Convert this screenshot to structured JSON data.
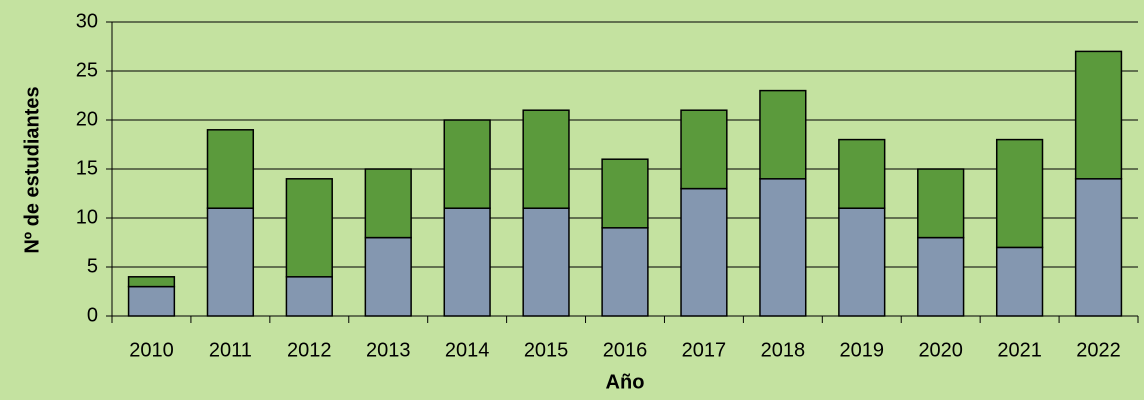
{
  "chart_data": {
    "type": "stacked_bar",
    "x_label": "Año",
    "y_label": "Nº de estudiantes",
    "categories": [
      "2010",
      "2011",
      "2012",
      "2013",
      "2014",
      "2015",
      "2016",
      "2017",
      "2018",
      "2019",
      "2020",
      "2021",
      "2022"
    ],
    "series": [
      {
        "color": "#8497b0",
        "values": [
          3,
          11,
          4,
          8,
          11,
          11,
          9,
          13,
          14,
          11,
          8,
          7,
          14
        ]
      },
      {
        "color": "#5b9a3c",
        "values": [
          1,
          8,
          10,
          7,
          9,
          10,
          7,
          8,
          9,
          7,
          7,
          11,
          13
        ]
      }
    ],
    "ylim": [
      0,
      30
    ],
    "yticks": [
      0,
      5,
      10,
      15,
      20,
      25,
      30
    ],
    "grid": true
  }
}
